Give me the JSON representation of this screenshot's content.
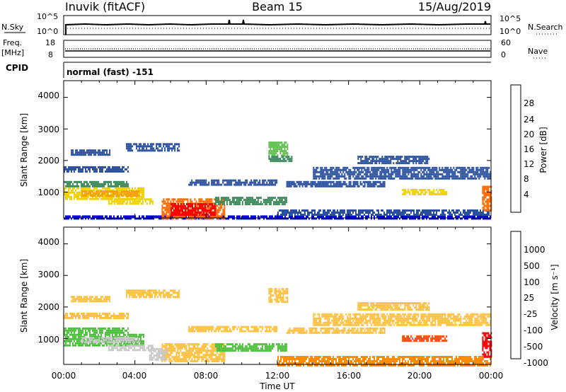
{
  "header": {
    "station": "Inuvik (fitACF)",
    "beam": "Beam 15",
    "date": "15/Aug/2019"
  },
  "strip_labels": {
    "nsky": "N.Sky",
    "freq_line1": "Freq.",
    "freq_line2": "[MHz]",
    "cpid": "CPID",
    "nsearch": "N.Search",
    "nave": "Nave",
    "cpid_text": "normal (fast) -151"
  },
  "strip_ticks": {
    "nsky_left": [
      "10^5",
      "10^0"
    ],
    "nsky_right": [
      "10^5",
      "10^0"
    ],
    "freq_left": [
      "18",
      "8"
    ],
    "nave_right": [
      "60",
      "0"
    ]
  },
  "colors": {
    "power": [
      "#0000ff",
      "#2a4f9e",
      "#3f8a5c",
      "#5fbf4f",
      "#f0d000",
      "#f59d00",
      "#ff6a00",
      "#ff0000"
    ],
    "velocity": [
      "#ff0000",
      "#ff4a00",
      "#ff8c00",
      "#ffc040",
      "#c8c8c8",
      "#50c040",
      "#3a8a6a",
      "#2a6aa0",
      "#1a2aa8"
    ]
  },
  "chart_data": [
    {
      "type": "heatmap",
      "panel": "power",
      "ylabel": "Slant Range [km]",
      "ylim": [
        180,
        4530
      ],
      "yticks": [
        "4000",
        "3000",
        "2000",
        "1000"
      ],
      "xlim": [
        0,
        24
      ],
      "colorbar_label": "Power [dB]",
      "colorbar_ticks": [
        "28",
        "24",
        "20",
        "16",
        "12",
        "8",
        "4"
      ],
      "regions": [
        {
          "x0": 0.0,
          "x1": 24.0,
          "y0": 180,
          "y1": 260,
          "level": 1
        },
        {
          "x0": 0.0,
          "x1": 3.6,
          "y0": 1650,
          "y1": 1820,
          "level": 2
        },
        {
          "x0": 0.0,
          "x1": 3.6,
          "y0": 1200,
          "y1": 1350,
          "level": 3
        },
        {
          "x0": 0.0,
          "x1": 4.5,
          "y0": 800,
          "y1": 1150,
          "level": 5
        },
        {
          "x0": 1.0,
          "x1": 4.2,
          "y0": 900,
          "y1": 1050,
          "level": 6
        },
        {
          "x0": 2.5,
          "x1": 5.0,
          "y0": 600,
          "y1": 800,
          "level": 5
        },
        {
          "x0": 5.5,
          "x1": 9.0,
          "y0": 180,
          "y1": 800,
          "level": 7
        },
        {
          "x0": 6.0,
          "x1": 8.5,
          "y0": 250,
          "y1": 650,
          "level": 8
        },
        {
          "x0": 0.4,
          "x1": 2.6,
          "y0": 2200,
          "y1": 2350,
          "level": 2
        },
        {
          "x0": 3.5,
          "x1": 6.5,
          "y0": 2300,
          "y1": 2550,
          "level": 2
        },
        {
          "x0": 11.5,
          "x1": 12.6,
          "y0": 2150,
          "y1": 2600,
          "level": 4
        },
        {
          "x0": 11.5,
          "x1": 12.8,
          "y0": 2000,
          "y1": 2150,
          "level": 3
        },
        {
          "x0": 7.0,
          "x1": 12.0,
          "y0": 1250,
          "y1": 1400,
          "level": 2
        },
        {
          "x0": 8.5,
          "x1": 12.5,
          "y0": 600,
          "y1": 850,
          "level": 3
        },
        {
          "x0": 12.5,
          "x1": 18.0,
          "y0": 1150,
          "y1": 1350,
          "level": 2
        },
        {
          "x0": 14.0,
          "x1": 24.0,
          "y0": 1450,
          "y1": 1800,
          "level": 2
        },
        {
          "x0": 16.5,
          "x1": 20.5,
          "y0": 1900,
          "y1": 2150,
          "level": 2
        },
        {
          "x0": 19.0,
          "x1": 21.5,
          "y0": 900,
          "y1": 1100,
          "level": 5
        },
        {
          "x0": 12.0,
          "x1": 24.0,
          "y0": 260,
          "y1": 450,
          "level": 2
        },
        {
          "x0": 23.5,
          "x1": 24.0,
          "y0": 400,
          "y1": 1200,
          "level": 7
        }
      ]
    },
    {
      "type": "heatmap",
      "panel": "velocity",
      "ylabel": "Slant Range [km]",
      "ylim": [
        180,
        4530
      ],
      "yticks": [
        "4000",
        "3000",
        "2000",
        "1000"
      ],
      "xlim": [
        0,
        24
      ],
      "xticks": [
        "00:00",
        "04:00",
        "08:00",
        "12:00",
        "16:00",
        "20:00",
        "00:00"
      ],
      "xlabel": "Time UT",
      "colorbar_label": "Velocity [m s⁻¹]",
      "colorbar_ticks": [
        "1000",
        "500",
        "100",
        "25",
        "-25",
        "-100",
        "-500",
        "-1000"
      ],
      "regions": [
        {
          "x0": 0.0,
          "x1": 3.6,
          "y0": 1650,
          "y1": 1820,
          "level": 4
        },
        {
          "x0": 0.0,
          "x1": 3.6,
          "y0": 1200,
          "y1": 1350,
          "level": 6
        },
        {
          "x0": 0.0,
          "x1": 4.5,
          "y0": 800,
          "y1": 1150,
          "level": 6
        },
        {
          "x0": 1.0,
          "x1": 4.2,
          "y0": 900,
          "y1": 1050,
          "level": 5
        },
        {
          "x0": 2.5,
          "x1": 5.0,
          "y0": 600,
          "y1": 800,
          "level": 5
        },
        {
          "x0": 5.5,
          "x1": 9.0,
          "y0": 250,
          "y1": 850,
          "level": 4
        },
        {
          "x0": 4.8,
          "x1": 5.8,
          "y0": 300,
          "y1": 700,
          "level": 5
        },
        {
          "x0": 0.4,
          "x1": 2.6,
          "y0": 2200,
          "y1": 2350,
          "level": 4
        },
        {
          "x0": 3.5,
          "x1": 6.5,
          "y0": 2300,
          "y1": 2550,
          "level": 4
        },
        {
          "x0": 11.5,
          "x1": 12.6,
          "y0": 2150,
          "y1": 2600,
          "level": 4
        },
        {
          "x0": 7.0,
          "x1": 12.0,
          "y0": 1250,
          "y1": 1400,
          "level": 4
        },
        {
          "x0": 8.5,
          "x1": 12.5,
          "y0": 600,
          "y1": 850,
          "level": 6
        },
        {
          "x0": 12.5,
          "x1": 18.0,
          "y0": 1150,
          "y1": 1350,
          "level": 4
        },
        {
          "x0": 14.0,
          "x1": 24.0,
          "y0": 1450,
          "y1": 1800,
          "level": 4
        },
        {
          "x0": 16.5,
          "x1": 20.5,
          "y0": 1900,
          "y1": 2150,
          "level": 4
        },
        {
          "x0": 19.0,
          "x1": 21.5,
          "y0": 900,
          "y1": 1100,
          "level": 2
        },
        {
          "x0": 12.0,
          "x1": 24.0,
          "y0": 180,
          "y1": 450,
          "level": 3
        },
        {
          "x0": 23.5,
          "x1": 24.0,
          "y0": 400,
          "y1": 1200,
          "level": 1
        }
      ]
    }
  ]
}
